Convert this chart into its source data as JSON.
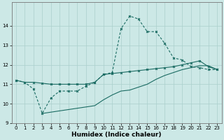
{
  "xlabel": "Humidex (Indice chaleur)",
  "bg_color": "#cce8e6",
  "grid_color": "#aacfcc",
  "line_color": "#1a6b62",
  "xlim": [
    -0.5,
    23.5
  ],
  "ylim": [
    9,
    15.2
  ],
  "yticks": [
    9,
    10,
    11,
    12,
    13,
    14
  ],
  "xticks": [
    0,
    1,
    2,
    3,
    4,
    5,
    6,
    7,
    8,
    9,
    10,
    11,
    12,
    13,
    14,
    15,
    16,
    17,
    18,
    19,
    20,
    21,
    22,
    23
  ],
  "line1_x": [
    0,
    1,
    2,
    3,
    4,
    5,
    6,
    7,
    8,
    9,
    10,
    11,
    12,
    13,
    14,
    15,
    16,
    17,
    18,
    19,
    20,
    21,
    22,
    23
  ],
  "line1_y": [
    11.2,
    11.1,
    11.1,
    11.05,
    11.0,
    11.0,
    11.0,
    11.0,
    11.0,
    11.1,
    11.5,
    11.55,
    11.6,
    11.65,
    11.7,
    11.75,
    11.8,
    11.85,
    11.9,
    12.0,
    12.1,
    12.2,
    11.9,
    11.75
  ],
  "line2_x": [
    0,
    1,
    2,
    3,
    4,
    5,
    6,
    7,
    8,
    9,
    10,
    11,
    12,
    13,
    14,
    15,
    16,
    17,
    18,
    19,
    20,
    21,
    22,
    23
  ],
  "line2_y": [
    11.2,
    11.1,
    10.75,
    9.5,
    10.3,
    10.65,
    10.65,
    10.65,
    10.9,
    11.1,
    11.5,
    11.6,
    13.85,
    14.5,
    14.35,
    13.7,
    13.7,
    13.1,
    12.35,
    12.25,
    11.9,
    11.85,
    11.75,
    11.75
  ],
  "line3_x": [
    3,
    9,
    10,
    11,
    12,
    13,
    14,
    15,
    16,
    17,
    18,
    19,
    20,
    21,
    22,
    23
  ],
  "line3_y": [
    9.5,
    9.9,
    10.2,
    10.45,
    10.65,
    10.7,
    10.85,
    11.0,
    11.25,
    11.45,
    11.6,
    11.75,
    11.85,
    11.95,
    11.95,
    11.75
  ]
}
